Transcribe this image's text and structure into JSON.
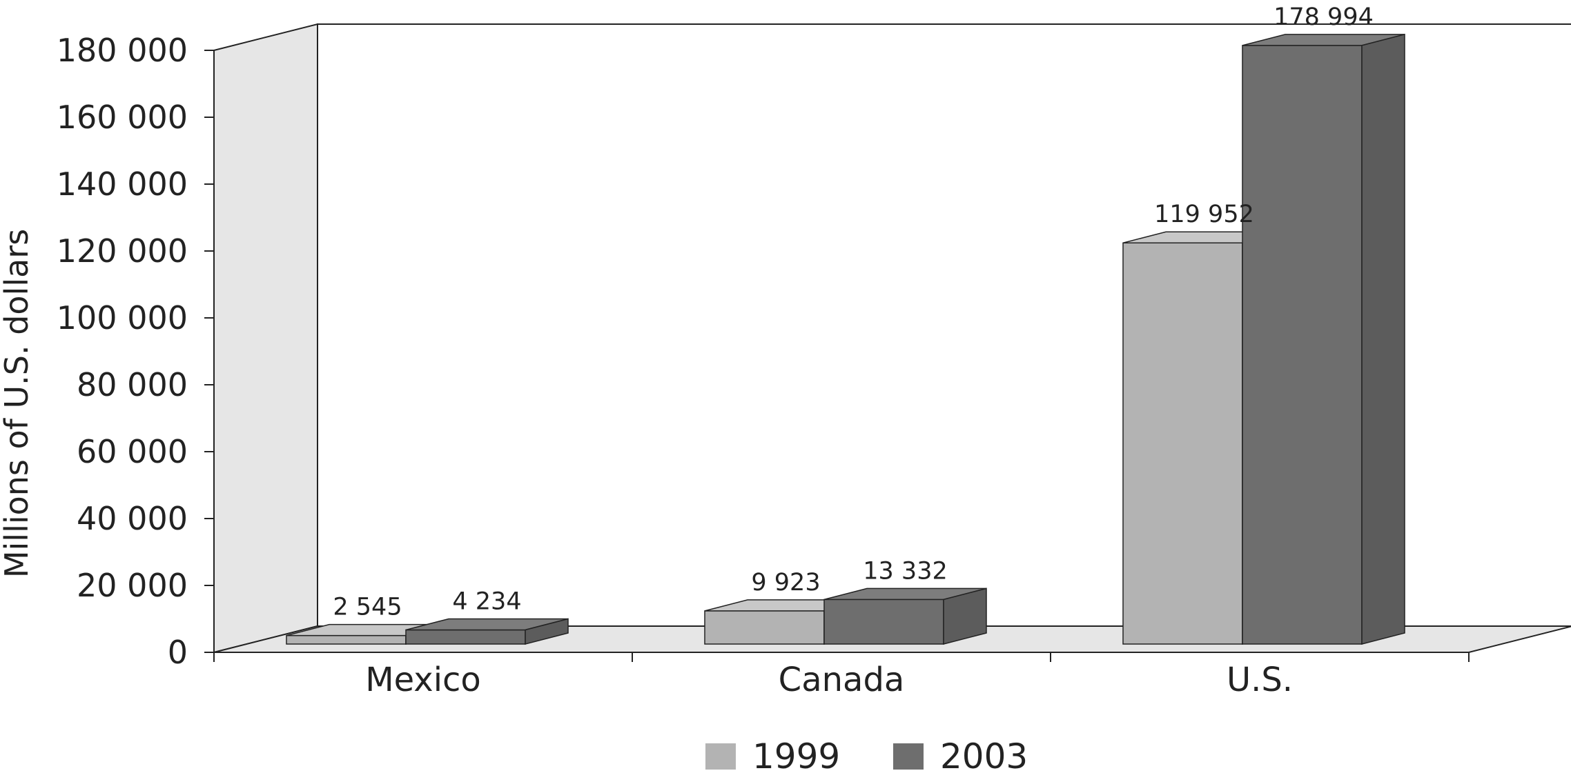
{
  "chart_data": {
    "type": "bar",
    "style": "3d",
    "title": "",
    "xlabel": "",
    "ylabel": "Millions of U.S. dollars",
    "ylim": [
      0,
      180000
    ],
    "yticks": [
      0,
      20000,
      40000,
      60000,
      80000,
      100000,
      120000,
      140000,
      160000,
      180000
    ],
    "ytick_labels": [
      "0",
      "20 000",
      "40 000",
      "60 000",
      "80 000",
      "100 000",
      "120 000",
      "140 000",
      "160 000",
      "180 000"
    ],
    "categories": [
      "Mexico",
      "Canada",
      "U.S."
    ],
    "series": [
      {
        "name": "1999",
        "color": "#b3b3b3",
        "values": [
          2545,
          9923,
          119952
        ],
        "labels": [
          "2 545",
          "9 923",
          "119 952"
        ]
      },
      {
        "name": "2003",
        "color": "#6e6e6e",
        "values": [
          4234,
          13332,
          178994
        ],
        "labels": [
          "4 234",
          "13 332",
          "178 994"
        ]
      }
    ],
    "legend": "bottom",
    "grid": false
  }
}
